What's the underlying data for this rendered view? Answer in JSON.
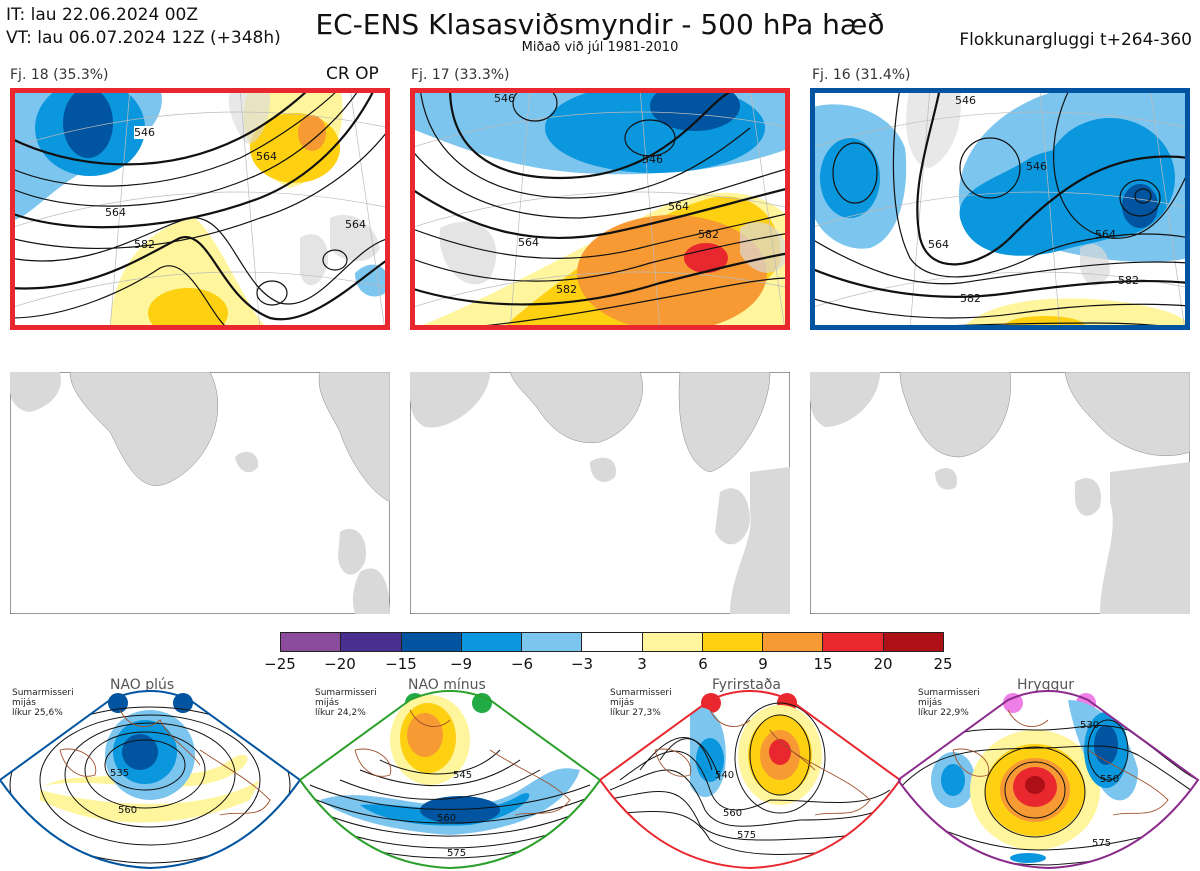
{
  "header": {
    "init_time": "IT: lau 22.06.2024 00Z",
    "valid_time": "VT: lau 06.07.2024 12Z  (+348h)",
    "title": "EC-ENS Klasasviðsmyndir - 500 hPa hæð",
    "subtitle": "Miðað við júl 1981-2010",
    "window": "Flokkunargluggi t+264-360"
  },
  "clusters": [
    {
      "label": "Fj. 18 (35.3%)",
      "tag": "CR OP",
      "border_color": "#e8282e",
      "contour_labels": [
        "546",
        "564",
        "564",
        "582",
        "564"
      ]
    },
    {
      "label": "Fj. 17 (33.3%)",
      "tag": "",
      "border_color": "#e8282e",
      "contour_labels": [
        "546",
        "546",
        "564",
        "564",
        "582",
        "582"
      ]
    },
    {
      "label": "Fj. 16 (31.4%)",
      "tag": "",
      "border_color": "#0054a0",
      "contour_labels": [
        "546",
        "546",
        "564",
        "564",
        "582",
        "582"
      ]
    }
  ],
  "colorbar": {
    "colors": [
      "#8b4c9c",
      "#4b2f90",
      "#0054a0",
      "#0b97dd",
      "#7cc5ee",
      "#ffffff",
      "#fff59d",
      "#fed012",
      "#f79a33",
      "#e8282e",
      "#ad1117"
    ],
    "ticks": [
      "−25",
      "−20",
      "−15",
      "−9",
      "−6",
      "−3",
      "3",
      "6",
      "9",
      "15",
      "20",
      "25"
    ]
  },
  "regimes": [
    {
      "title": "NAO plús",
      "line1": "Sumarmisseri",
      "line2": "mijás",
      "line3": "líkur 25,6%",
      "border_color": "#0054a0",
      "dot_color": "#0054a0",
      "contours": [
        "535",
        "560"
      ]
    },
    {
      "title": "NAO mínus",
      "line1": "Sumarmisseri",
      "line2": "mijás",
      "line3": "líkur 24,2%",
      "border_color": "#2ca02c",
      "dot_color": "#22aa44",
      "contours": [
        "545",
        "560",
        "575"
      ]
    },
    {
      "title": "Fyrirstaða",
      "line1": "Sumarmisseri",
      "line2": "mijás",
      "line3": "líkur 27,3%",
      "border_color": "#e8282e",
      "dot_color": "#e8282e",
      "contours": [
        "540",
        "560",
        "575"
      ]
    },
    {
      "title": "Hryggur",
      "line1": "Sumarmisseri",
      "line2": "mijás",
      "line3": "líkur 22,9%",
      "border_color": "#8b2c8c",
      "dot_color": "#ee7fe6",
      "contours": [
        "530",
        "550",
        "575"
      ]
    }
  ]
}
